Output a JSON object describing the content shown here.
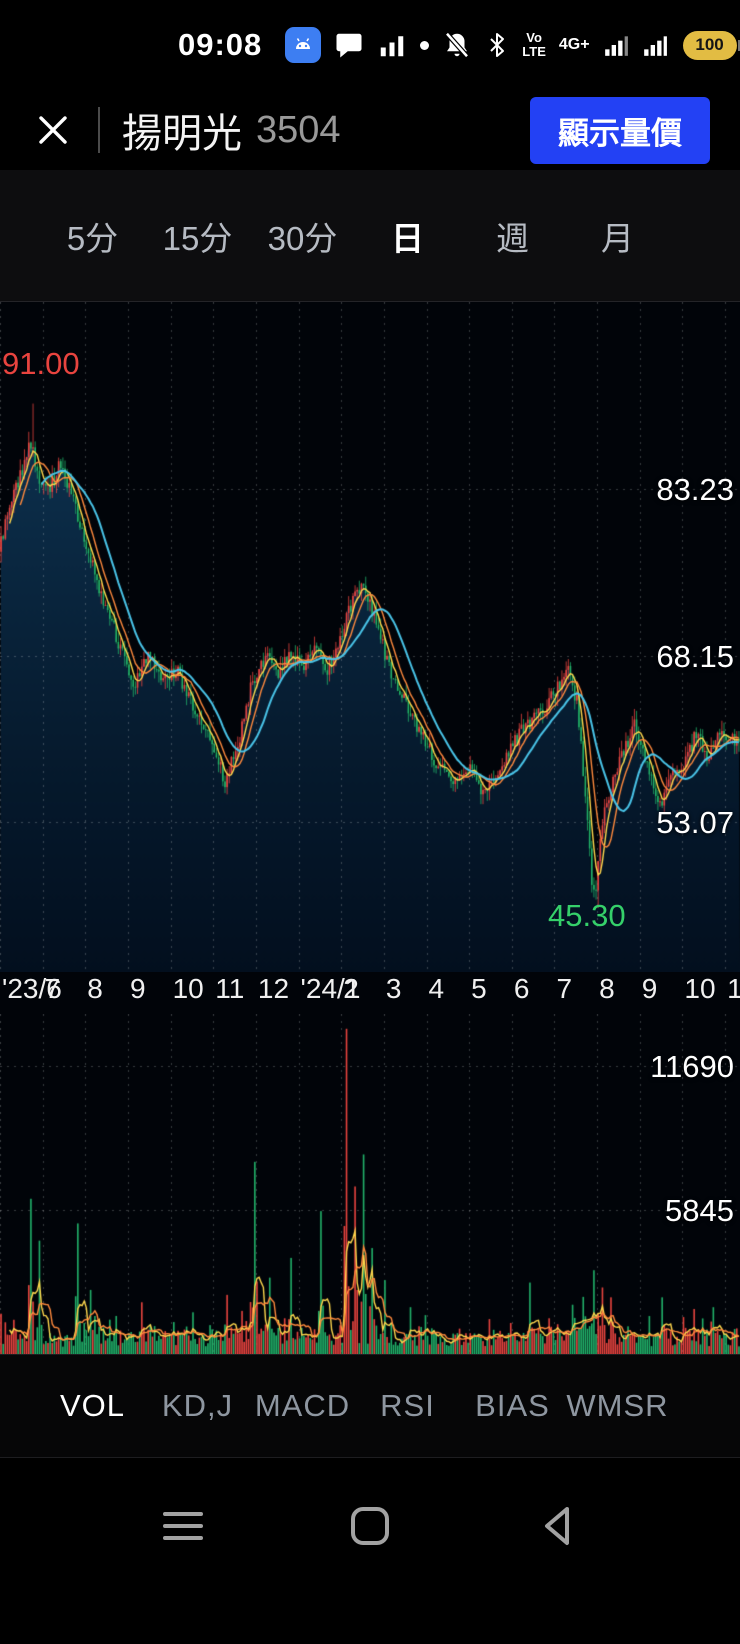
{
  "status_bar": {
    "time": "09:08",
    "battery_level": "100",
    "network_label": "4G+",
    "volte_line1": "Vo",
    "volte_line2": "LTE"
  },
  "header": {
    "stock_name": "揚明光",
    "stock_code": "3504",
    "action_button_label": "顯示量價"
  },
  "timeframe_tabs": {
    "items": [
      "5分",
      "15分",
      "30分",
      "日",
      "週",
      "月"
    ],
    "selected": "日"
  },
  "indicator_tabs": {
    "items": [
      "VOL",
      "KD,J",
      "MACD",
      "RSI",
      "BIAS",
      "WMSR"
    ],
    "selected": "VOL"
  },
  "chart_data": {
    "type": "candlestick",
    "instrument": "揚明光 3504",
    "period": "日",
    "x_labels": [
      "'23/6",
      "7",
      "8",
      "9",
      "10",
      "11",
      "12",
      "'24/1",
      "2",
      "3",
      "4",
      "5",
      "6",
      "7",
      "8",
      "9",
      "10",
      "1"
    ],
    "months_span": 17.35,
    "days_per_month": 20,
    "price_axis": {
      "gridline_labels": [
        "83.23",
        "68.15",
        "53.07"
      ],
      "gridline_values": [
        83.23,
        68.15,
        53.07
      ],
      "range": [
        39.5,
        100.2
      ]
    },
    "high_marker": {
      "label": "91.00",
      "value": 91.0
    },
    "low_marker": {
      "label": "45.30",
      "value": 45.3
    },
    "price_path": [
      [
        0,
        78
      ],
      [
        0.25,
        81.5
      ],
      [
        0.55,
        85
      ],
      [
        0.75,
        87.5
      ],
      [
        0.95,
        84
      ],
      [
        1.15,
        83
      ],
      [
        1.45,
        85.5
      ],
      [
        1.75,
        82
      ],
      [
        2.05,
        78
      ],
      [
        2.45,
        73
      ],
      [
        2.85,
        69
      ],
      [
        3.15,
        65.5
      ],
      [
        3.5,
        68
      ],
      [
        3.85,
        66
      ],
      [
        4.2,
        66.5
      ],
      [
        4.6,
        63
      ],
      [
        5,
        60
      ],
      [
        5.3,
        56.8
      ],
      [
        5.6,
        60
      ],
      [
        5.95,
        66
      ],
      [
        6.25,
        68
      ],
      [
        6.55,
        66.5
      ],
      [
        6.85,
        68.5
      ],
      [
        7.15,
        67
      ],
      [
        7.45,
        69.5
      ],
      [
        7.7,
        67
      ],
      [
        7.95,
        69
      ],
      [
        8.15,
        72
      ],
      [
        8.45,
        74.5
      ],
      [
        8.7,
        73
      ],
      [
        9,
        69
      ],
      [
        9.25,
        66
      ],
      [
        9.55,
        64
      ],
      [
        9.9,
        61
      ],
      [
        10.25,
        58.5
      ],
      [
        10.6,
        57
      ],
      [
        11,
        58
      ],
      [
        11.3,
        55.8
      ],
      [
        11.6,
        57
      ],
      [
        12,
        60
      ],
      [
        12.4,
        62
      ],
      [
        12.8,
        63.5
      ],
      [
        13.1,
        65.2
      ],
      [
        13.35,
        67
      ],
      [
        13.55,
        64
      ],
      [
        13.72,
        57
      ],
      [
        13.88,
        48.5
      ],
      [
        13.98,
        46.3
      ],
      [
        14.15,
        53
      ],
      [
        14.35,
        56
      ],
      [
        14.6,
        59
      ],
      [
        14.9,
        62
      ],
      [
        15.2,
        58
      ],
      [
        15.5,
        54.8
      ],
      [
        15.75,
        57
      ],
      [
        16.05,
        58.5
      ],
      [
        16.35,
        61
      ],
      [
        16.6,
        59
      ],
      [
        16.9,
        61.5
      ],
      [
        17.1,
        60
      ],
      [
        17.35,
        61
      ]
    ],
    "volume_axis": {
      "gridline_labels": [
        "11690",
        "5845"
      ],
      "gridline_values": [
        11690,
        5845
      ],
      "range": [
        0,
        13800
      ]
    },
    "volume_spikes": [
      [
        0.72,
        6300
      ],
      [
        0.9,
        4600
      ],
      [
        1.78,
        5300
      ],
      [
        2.12,
        2600
      ],
      [
        3.3,
        2100
      ],
      [
        5.3,
        2400
      ],
      [
        5.97,
        7800
      ],
      [
        6.3,
        3100
      ],
      [
        6.82,
        3900
      ],
      [
        7.5,
        5800
      ],
      [
        8.12,
        13200
      ],
      [
        8.32,
        6800
      ],
      [
        8.5,
        8100
      ],
      [
        8.68,
        4300
      ],
      [
        9.02,
        3000
      ],
      [
        9.6,
        1900
      ],
      [
        12.42,
        2900
      ],
      [
        13.4,
        2000
      ],
      [
        13.9,
        3400
      ],
      [
        14.08,
        2700
      ],
      [
        14.32,
        2300
      ],
      [
        15.52,
        2300
      ],
      [
        16,
        1500
      ],
      [
        16.68,
        1900
      ]
    ],
    "moving_average_periods": [
      5,
      10,
      20
    ],
    "volume_ma_periods": [
      5,
      10
    ],
    "colors": {
      "up": "#e8443f",
      "down": "#21b26a",
      "ma_short": "#ffd84d",
      "ma_mid": "#ff8a3d",
      "ma_long": "#49c4e8",
      "area_top": "rgba(33,116,178,0.50)",
      "area_bottom": "rgba(10,48,88,0.28)",
      "grid": "rgba(255,255,255,0.22)",
      "high_label": "#e8443f",
      "low_label": "#35d06a"
    }
  },
  "nav_bar": {
    "buttons": [
      "menu",
      "home",
      "back"
    ]
  }
}
